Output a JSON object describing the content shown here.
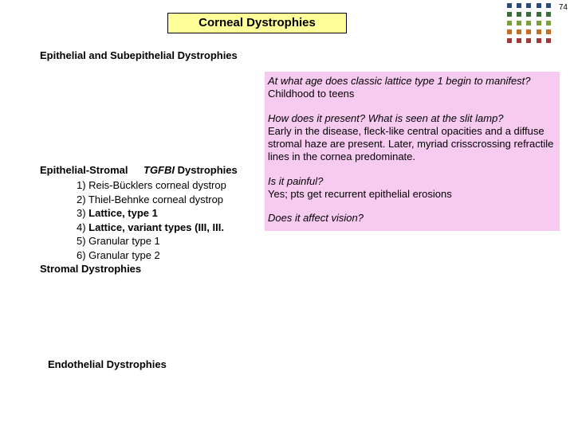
{
  "page_number": "74",
  "title": "Corneal Dystrophies",
  "headings": {
    "epi_sub": "Epithelial and Subepithelial Dystrophies",
    "epi_stromal_b": "Epithelial-Stromal",
    "epi_stromal_i": "TGFBI",
    "epi_stromal_b2": "Dystrophies",
    "stromal": "Stromal Dystrophies",
    "endothelial": "Endothelial Dystrophies"
  },
  "list": {
    "l1": "1) Reis-Bücklers corneal dystrop",
    "l2": "2) Thiel-Behnke corneal dystrop",
    "l3a": "3) ",
    "l3b": "Lattice, type 1",
    "l4a": "4) ",
    "l4b": "Lattice, variant types (III, III.",
    "l5": "5) Granular type 1",
    "l6": "6) Granular type 2"
  },
  "popup": {
    "q1": "At what age does classic lattice type 1 begin to manifest?",
    "a1": "Childhood to teens",
    "q2": "How does it present? What is seen at the slit lamp?",
    "a2": "Early in the disease, fleck-like central opacities and a diffuse stromal haze are present. Later, myriad crisscrossing refractile lines in the cornea predominate.",
    "q3": "Is it painful?",
    "a3": "Yes; pts get recurrent epithelial erosions",
    "q4": "Does it affect vision?"
  },
  "dot_colors": [
    "#2a4a7a",
    "#2a4a7a",
    "#2a4a7a",
    "#2a4a7a",
    "#2a4a7a",
    "#3c6b3c",
    "#3c6b3c",
    "#3c6b3c",
    "#3c6b3c",
    "#3c6b3c",
    "#7aa03a",
    "#7aa03a",
    "#7aa03a",
    "#7aa03a",
    "#7aa03a",
    "#c07020",
    "#c07020",
    "#c07020",
    "#c07020",
    "#c07020",
    "#a03a3a",
    "#a03a3a",
    "#a03a3a",
    "#a03a3a",
    "#a03a3a"
  ]
}
